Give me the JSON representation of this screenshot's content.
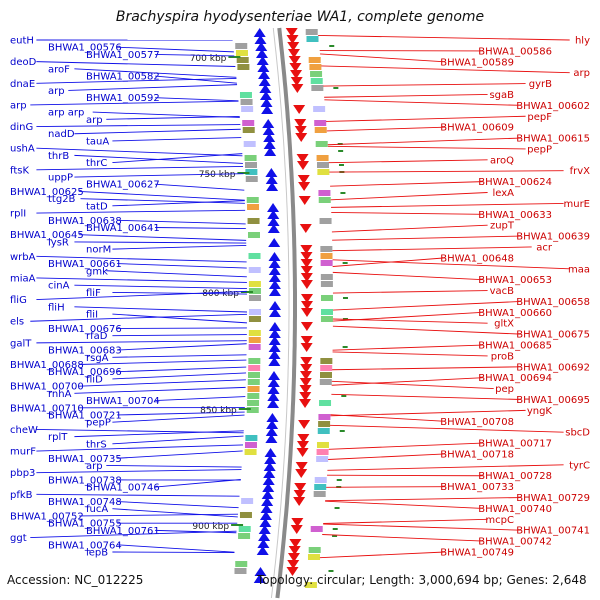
{
  "map": {
    "title": "Brachyspira hyodysenteriae WA1, complete genome",
    "accession": "Accession: NC_012225",
    "summary": "Topology: circular; Length: 3,000,694 bp; Genes: 2,648",
    "colors": {
      "forward_strand": "#1010e8",
      "reverse_strand": "#e81010",
      "backbone": "#8a8a8a",
      "tick": "#2a8a2a",
      "label_fwd": "#0000cc",
      "label_rev": "#cc0000"
    }
  },
  "ticks": [
    {
      "label": "700 kbp"
    },
    {
      "label": "750 kbp"
    },
    {
      "label": "800 kbp"
    },
    {
      "label": "850 kbp"
    },
    {
      "label": "900 kbp"
    }
  ],
  "forward_labels": [
    "eutH",
    "BHWA1_00576",
    "BHWA1_00577",
    "deoD",
    "aroF",
    "BHWA1_00582",
    "dnaE",
    "arp",
    "BHWA1_00592",
    "arp",
    "arp arp",
    "arp",
    "dinG",
    "nadD",
    "tauA",
    "ushA",
    "thrB",
    "thrC",
    "ftsK",
    "uppP",
    "BHWA1_00627",
    "BHWA1_00625",
    "ttg2B",
    "tatD",
    "rplI",
    "BHWA1_00638",
    "BHWA1_00641",
    "BHWA1_00645",
    "lysR",
    "norM",
    "wrbA",
    "BHWA1_00661",
    "gmk",
    "miaA",
    "cinA",
    "fliF",
    "fliG",
    "fliH",
    "fliI",
    "els",
    "BHWA1_00676",
    "rfaD",
    "galT",
    "BHWA1_00683",
    "rsgA",
    "BHWA1_00688",
    "BHWA1_00696",
    "fliD",
    "BHWA1_00700",
    "rnhA",
    "BHWA1_00704",
    "BHWA1_00710",
    "BHWA1_00721",
    "pepP",
    "cheW",
    "rplT",
    "thrS",
    "murF",
    "BHWA1_00735",
    "arp",
    "pbp3",
    "BHWA1_00738",
    "BHWA1_00746",
    "pfkB",
    "BHWA1_00748",
    "fucA",
    "BHWA1_00752",
    "BHWA1_00755",
    "BHWA1_00761",
    "ggt",
    "BHWA1_00764",
    "lepB"
  ],
  "reverse_labels": [
    "hly",
    "BHWA1_00586",
    "BHWA1_00589",
    "arp",
    "gyrB",
    "sgaB",
    "BHWA1_00602",
    "pepF",
    "BHWA1_00609",
    "BHWA1_00615",
    "pepP",
    "aroQ",
    "frvX",
    "BHWA1_00624",
    "lexA",
    "murE",
    "BHWA1_00633",
    "zupT",
    "BHWA1_00639",
    "acr",
    "BHWA1_00648",
    "maa",
    "BHWA1_00653",
    "vacB",
    "BHWA1_00658",
    "BHWA1_00660",
    "gltX",
    "BHWA1_00675",
    "BHWA1_00685",
    "proB",
    "BHWA1_00692",
    "BHWA1_00694",
    "pep",
    "BHWA1_00695",
    "yngK",
    "BHWA1_00708",
    "sbcD",
    "BHWA1_00717",
    "BHWA1_00718",
    "tyrC",
    "BHWA1_00728",
    "BHWA1_00733",
    "BHWA1_00729",
    "BHWA1_00740",
    "mcpC",
    "BHWA1_00741",
    "BHWA1_00742",
    "BHWA1_00749"
  ]
}
